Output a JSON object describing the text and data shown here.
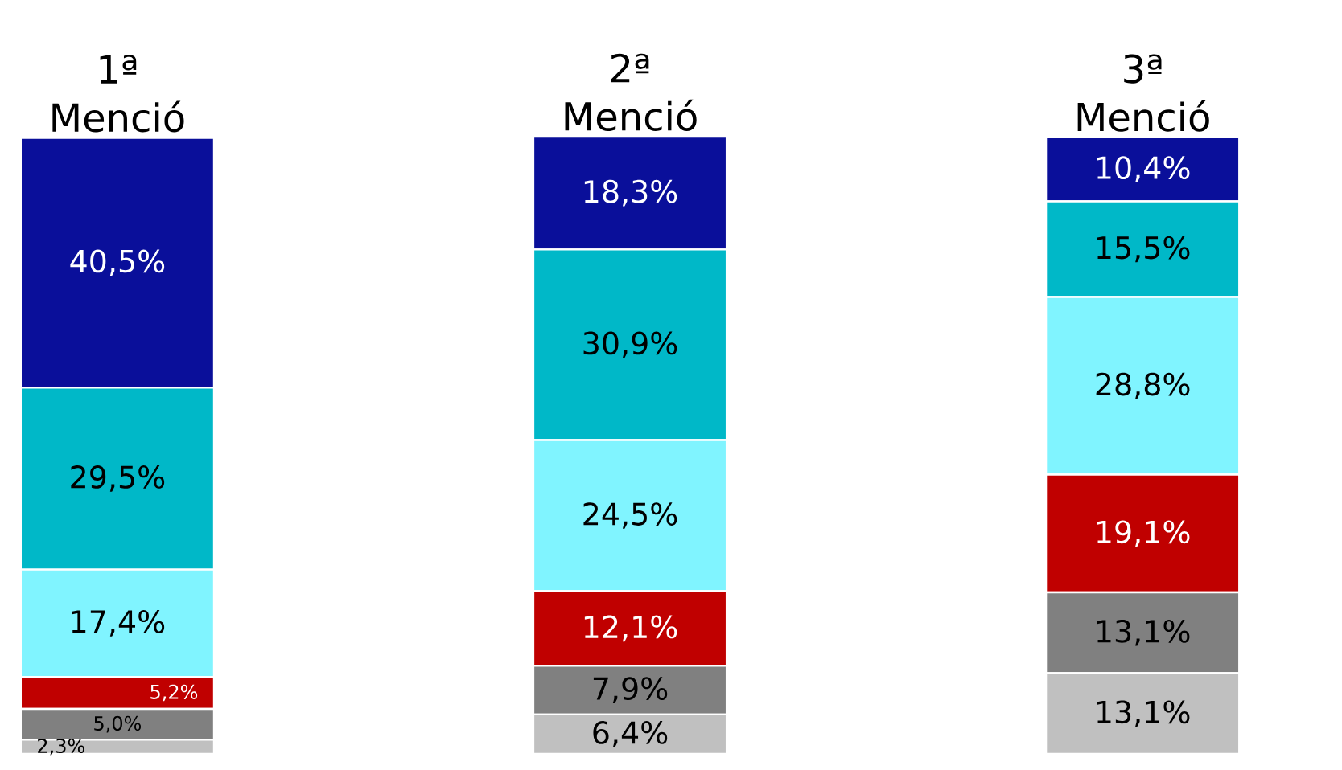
{
  "chart_data": {
    "type": "bar",
    "stacked": true,
    "categories": [
      "1ª Menció",
      "2ª Menció",
      "3ª Menció"
    ],
    "series": [
      {
        "color": "#c0c0c0",
        "values": [
          2.3,
          6.4,
          13.1
        ],
        "value_labels": [
          "2,3%",
          "6,4%",
          "13,1%"
        ]
      },
      {
        "color": "#808080",
        "values": [
          5.0,
          7.9,
          13.1
        ],
        "value_labels": [
          "5,0%",
          "7,9%",
          "13,1%"
        ]
      },
      {
        "color": "#c00000",
        "values": [
          5.2,
          12.1,
          19.1
        ],
        "value_labels": [
          "5,2%",
          "12,1%",
          "19,1%"
        ]
      },
      {
        "color": "#80f4ff",
        "values": [
          17.4,
          24.5,
          28.8
        ],
        "value_labels": [
          "17,4%",
          "24,5%",
          "28,8%"
        ]
      },
      {
        "color": "#00b8c8",
        "values": [
          29.5,
          30.9,
          15.5
        ],
        "value_labels": [
          "29,5%",
          "30,9%",
          "15,5%"
        ]
      },
      {
        "color": "#0a0f9a",
        "values": [
          40.5,
          18.3,
          10.4
        ],
        "value_labels": [
          "40,5%",
          "18,3%",
          "10,4%"
        ]
      }
    ]
  }
}
